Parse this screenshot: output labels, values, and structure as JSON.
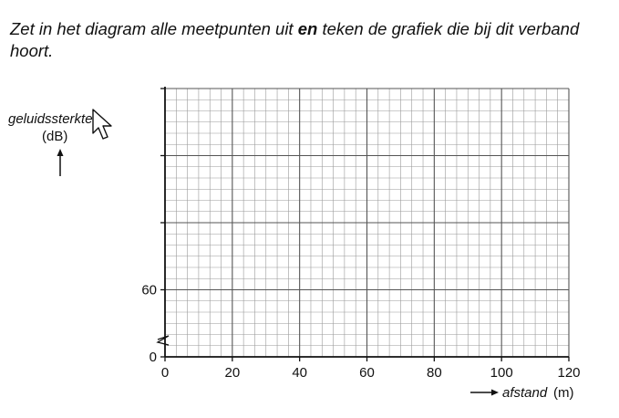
{
  "question": {
    "part1": "Zet in het diagram alle meetpunten uit ",
    "bold": "en",
    "part2": " teken de grafiek die bij dit verband hoort."
  },
  "chart_data": {
    "type": "scatter",
    "title": "",
    "xlabel": "afstand",
    "xunit": "(m)",
    "ylabel": "geluidssterkte",
    "yunit": "(dB)",
    "x_ticks": [
      "0",
      "20",
      "40",
      "60",
      "80",
      "100",
      "120"
    ],
    "y_ticks": [
      "0",
      "60"
    ],
    "xlim": [
      0,
      120
    ],
    "y_axis_break": true,
    "grid": true,
    "series": []
  }
}
